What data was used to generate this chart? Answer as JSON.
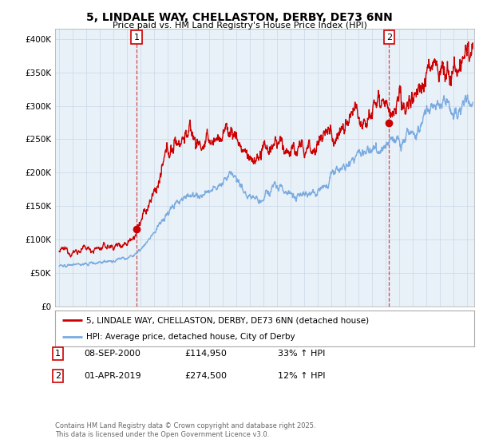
{
  "title": "5, LINDALE WAY, CHELLASTON, DERBY, DE73 6NN",
  "subtitle": "Price paid vs. HM Land Registry's House Price Index (HPI)",
  "ylabel_ticks": [
    "£0",
    "£50K",
    "£100K",
    "£150K",
    "£200K",
    "£250K",
    "£300K",
    "£350K",
    "£400K"
  ],
  "ytick_values": [
    0,
    50000,
    100000,
    150000,
    200000,
    250000,
    300000,
    350000,
    400000
  ],
  "ylim": [
    0,
    415000
  ],
  "xlim_start": 1994.7,
  "xlim_end": 2025.5,
  "red_color": "#cc0000",
  "blue_color": "#7aabe0",
  "chart_bg": "#e8f0f8",
  "marker1_date": 2000.69,
  "marker1_value": 114950,
  "marker2_date": 2019.25,
  "marker2_value": 274500,
  "legend_line1": "5, LINDALE WAY, CHELLASTON, DERBY, DE73 6NN (detached house)",
  "legend_line2": "HPI: Average price, detached house, City of Derby",
  "footnote": "Contains HM Land Registry data © Crown copyright and database right 2025.\nThis data is licensed under the Open Government Licence v3.0.",
  "background_color": "#ffffff",
  "grid_color": "#c8d8e8"
}
